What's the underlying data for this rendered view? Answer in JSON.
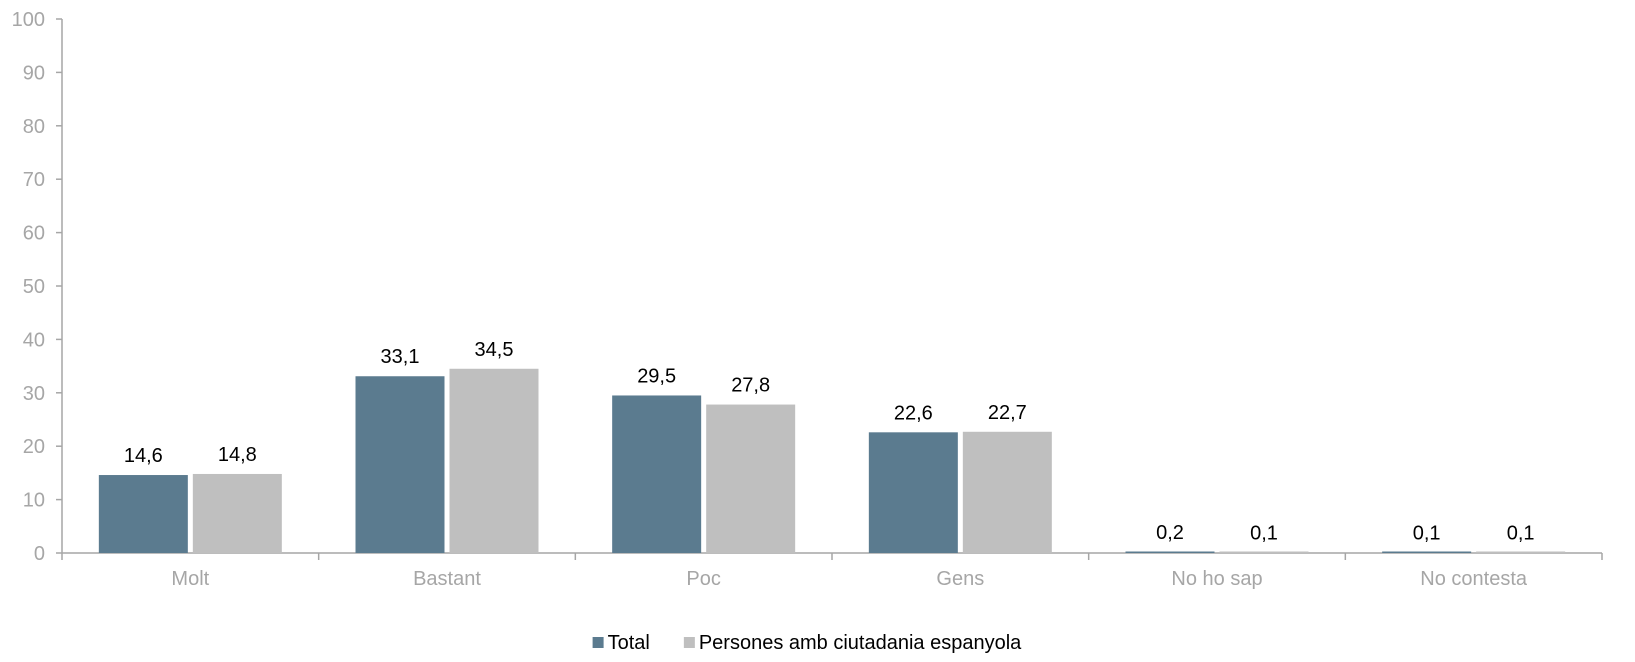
{
  "chart_data": {
    "type": "bar",
    "categories": [
      "Molt",
      "Bastant",
      "Poc",
      "Gens",
      "No ho sap",
      "No contesta"
    ],
    "series": [
      {
        "name": "Total",
        "values": [
          14.6,
          33.1,
          29.5,
          22.6,
          0.2,
          0.1
        ],
        "labels": [
          "14,6",
          "33,1",
          "29,5",
          "22,6",
          "0,2",
          "0,1"
        ],
        "color": "#5b7b8f"
      },
      {
        "name": "Persones amb ciutadania espanyola",
        "values": [
          14.8,
          34.5,
          27.8,
          22.7,
          0.1,
          0.1
        ],
        "labels": [
          "14,8",
          "34,5",
          "27,8",
          "22,7",
          "0,1",
          "0,1"
        ],
        "color": "#bfbfbf"
      }
    ],
    "y_ticks": [
      "0",
      "10",
      "20",
      "30",
      "40",
      "50",
      "60",
      "70",
      "80",
      "90",
      "100"
    ],
    "ylim": [
      0,
      100
    ],
    "grid": false,
    "legend_position": "bottom",
    "title": "",
    "xlabel": "",
    "ylabel": ""
  }
}
